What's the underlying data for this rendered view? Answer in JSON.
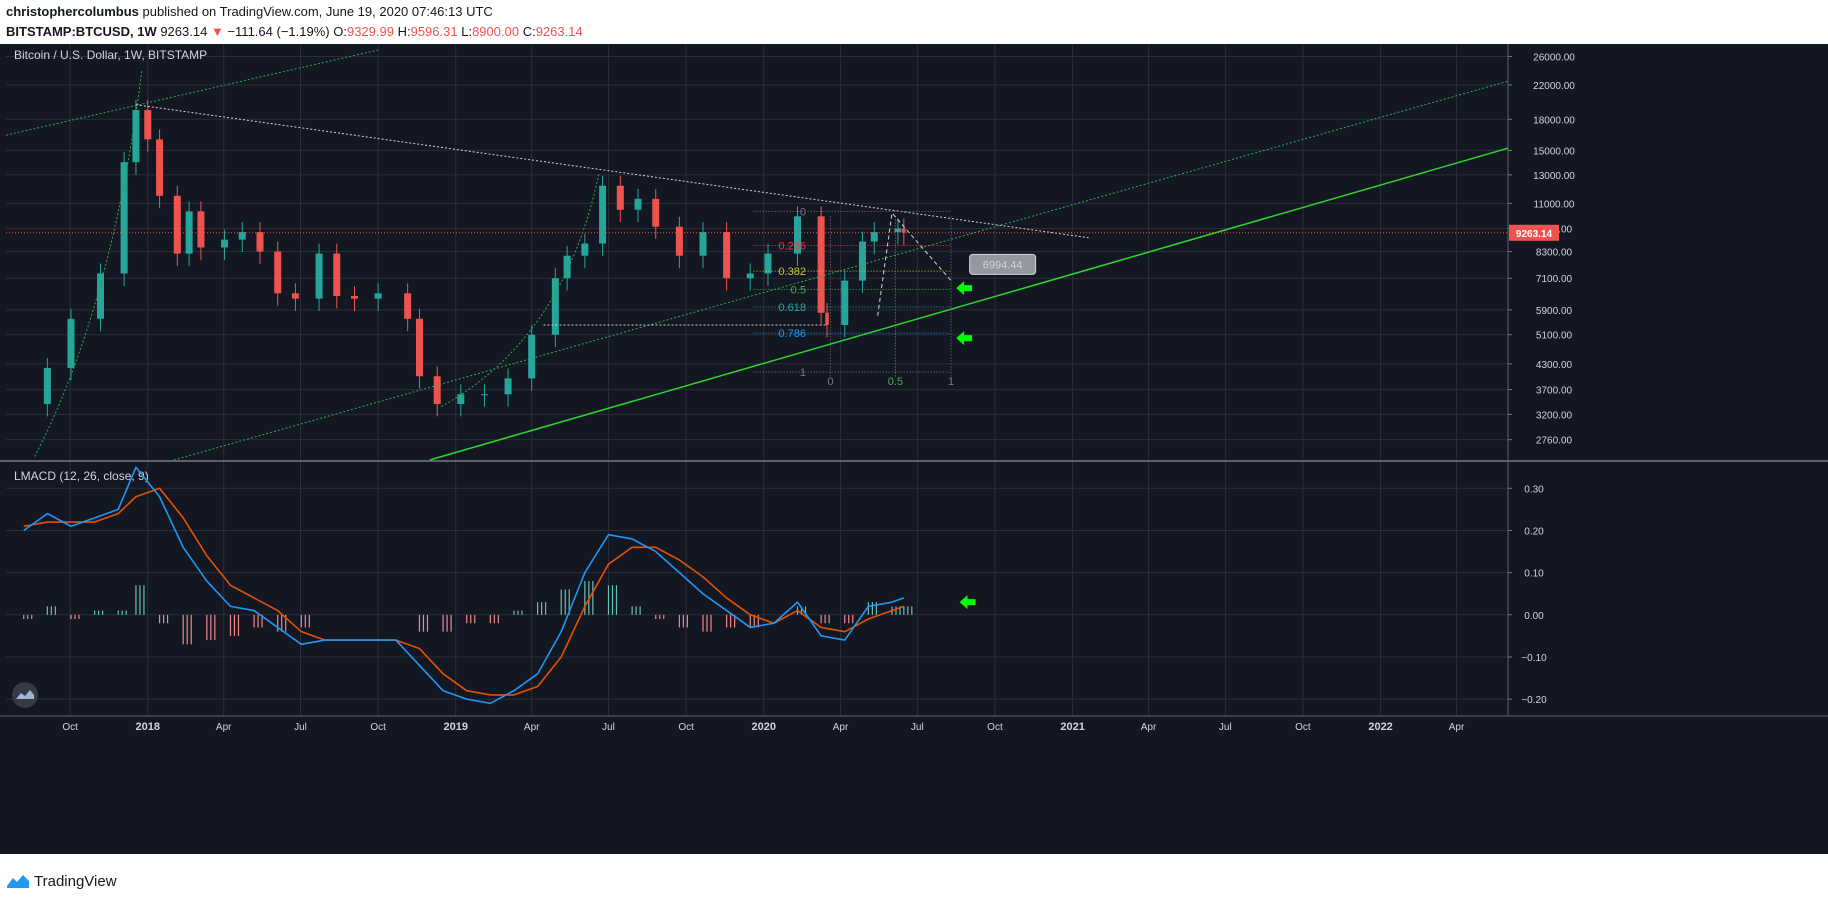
{
  "header": {
    "author": "christophercolumbus",
    "published_text": "published on TradingView.com, June 19, 2020 07:46:13 UTC",
    "symbol": "BITSTAMP:BTCUSD, 1W",
    "last": "9263.14",
    "change": "−111.64 (−1.19%)",
    "o_label": "O:",
    "o_value": "9329.99",
    "h_label": "H:",
    "h_value": "9596.31",
    "l_label": "L:",
    "l_value": "8900.00",
    "c_label": "C:",
    "c_value": "9263.14"
  },
  "footer": {
    "brand": "TradingView",
    "logo_icon": "tradingview-logo-icon"
  },
  "colors": {
    "background": "#131722",
    "grid": "#2a2e39",
    "up": "#26a69a",
    "down": "#ef5350",
    "price_line": "#ef5350",
    "macd_line": "#2196f3",
    "signal_line": "#e65100",
    "trend_green": "#2fd42f",
    "dotted_green": "#32a852",
    "white_dots": "#cfd3dc"
  },
  "chart_data": [
    {
      "type": "candlestick",
      "title": "Bitcoin / U.S. Dollar, 1W, BITSTAMP",
      "y_scale": "log",
      "ylim": [
        2450,
        27000
      ],
      "y_ticks": [
        "26000.00",
        "22000.00",
        "18000.00",
        "15000.00",
        "13000.00",
        "11000.00",
        "9500.00",
        "8300.00",
        "7100.00",
        "5900.00",
        "5100.00",
        "4300.00",
        "3700.00",
        "3200.00",
        "2760.00"
      ],
      "x_ticks": [
        "Oct",
        "2018",
        "Apr",
        "Jul",
        "Oct",
        "2019",
        "Apr",
        "Jul",
        "Oct",
        "2020",
        "Apr",
        "Jul",
        "Oct",
        "2021",
        "Apr",
        "Jul",
        "Oct",
        "2022",
        "Apr"
      ],
      "last_price_label": "9263.14",
      "series": [
        {
          "name": "close",
          "x": [
            "2017-08-07",
            "2017-09-04",
            "2017-10-02",
            "2017-11-06",
            "2017-12-04",
            "2017-12-18",
            "2018-01-01",
            "2018-01-15",
            "2018-02-05",
            "2018-02-19",
            "2018-03-05",
            "2018-04-02",
            "2018-04-23",
            "2018-05-14",
            "2018-06-04",
            "2018-06-25",
            "2018-07-23",
            "2018-08-13",
            "2018-09-03",
            "2018-10-01",
            "2018-11-05",
            "2018-11-19",
            "2018-12-10",
            "2019-01-07",
            "2019-02-04",
            "2019-03-04",
            "2019-04-01",
            "2019-04-29",
            "2019-05-13",
            "2019-06-03",
            "2019-06-24",
            "2019-07-15",
            "2019-08-05",
            "2019-08-26",
            "2019-09-23",
            "2019-10-21",
            "2019-11-18",
            "2019-12-16",
            "2020-01-06",
            "2020-02-10",
            "2020-03-09",
            "2020-03-16",
            "2020-04-06",
            "2020-04-27",
            "2020-05-11",
            "2020-06-08",
            "2020-06-15"
          ],
          "values": [
            3400,
            4200,
            5600,
            7300,
            14000,
            19000,
            16000,
            11500,
            8200,
            10500,
            8500,
            8900,
            9300,
            8300,
            6500,
            6300,
            8200,
            6400,
            6300,
            6500,
            5600,
            4000,
            3400,
            3600,
            3600,
            3950,
            5100,
            7100,
            8100,
            8700,
            12200,
            10600,
            11300,
            9600,
            8100,
            9300,
            7100,
            7300,
            8200,
            10200,
            5800,
            5400,
            7000,
            8800,
            9300,
            9500,
            9263.14
          ]
        }
      ],
      "annotations": {
        "fib_retracement": [
          {
            "level": "0",
            "price": 10500
          },
          {
            "level": "0.236",
            "price": 8600
          },
          {
            "level": "0.382",
            "price": 7400
          },
          {
            "level": "0.5",
            "price": 6650
          },
          {
            "level": "0.618",
            "price": 6000
          },
          {
            "level": "0.786",
            "price": 5150
          },
          {
            "level": "1",
            "price": 4100
          }
        ],
        "fib_time": [
          "0",
          "0.5",
          "1"
        ],
        "target_label": "6994.44"
      }
    },
    {
      "type": "line",
      "title": "LMACD (12, 26, close, 9)",
      "ylim": [
        -0.24,
        0.36
      ],
      "y_ticks": [
        "0.30",
        "0.20",
        "0.10",
        "0.00",
        "−0.10",
        "−0.20"
      ],
      "x": [
        "2017-08-07",
        "2017-09-04",
        "2017-10-02",
        "2017-10-30",
        "2017-11-27",
        "2017-12-18",
        "2018-01-15",
        "2018-02-12",
        "2018-03-12",
        "2018-04-09",
        "2018-05-07",
        "2018-06-04",
        "2018-07-02",
        "2018-07-30",
        "2018-08-27",
        "2018-09-24",
        "2018-10-22",
        "2018-11-19",
        "2018-12-17",
        "2019-01-14",
        "2019-02-11",
        "2019-03-11",
        "2019-04-08",
        "2019-05-06",
        "2019-06-03",
        "2019-07-01",
        "2019-07-29",
        "2019-08-26",
        "2019-09-23",
        "2019-10-21",
        "2019-11-18",
        "2019-12-16",
        "2020-01-13",
        "2020-02-10",
        "2020-03-09",
        "2020-04-06",
        "2020-05-04",
        "2020-06-01",
        "2020-06-15"
      ],
      "series": [
        {
          "name": "LMACD",
          "values": [
            0.2,
            0.24,
            0.21,
            0.23,
            0.25,
            0.35,
            0.28,
            0.16,
            0.08,
            0.02,
            0.01,
            -0.03,
            -0.07,
            -0.06,
            -0.06,
            -0.06,
            -0.06,
            -0.12,
            -0.18,
            -0.2,
            -0.21,
            -0.18,
            -0.14,
            -0.04,
            0.1,
            0.19,
            0.18,
            0.15,
            0.1,
            0.05,
            0.01,
            -0.03,
            -0.02,
            0.03,
            -0.05,
            -0.06,
            0.02,
            0.03,
            0.04
          ]
        },
        {
          "name": "Signal",
          "values": [
            0.21,
            0.22,
            0.22,
            0.22,
            0.24,
            0.28,
            0.3,
            0.23,
            0.14,
            0.07,
            0.04,
            0.01,
            -0.04,
            -0.06,
            -0.06,
            -0.06,
            -0.06,
            -0.08,
            -0.14,
            -0.18,
            -0.19,
            -0.19,
            -0.17,
            -0.1,
            0.02,
            0.12,
            0.16,
            0.16,
            0.13,
            0.09,
            0.04,
            0.0,
            -0.02,
            0.01,
            -0.03,
            -0.04,
            -0.01,
            0.01,
            0.02
          ]
        },
        {
          "name": "Histogram",
          "values": [
            -0.01,
            0.02,
            -0.01,
            0.01,
            0.01,
            0.07,
            -0.02,
            -0.07,
            -0.06,
            -0.05,
            -0.03,
            -0.04,
            -0.03,
            0.0,
            0.0,
            0.0,
            0.0,
            -0.04,
            -0.04,
            -0.02,
            -0.02,
            0.01,
            0.03,
            0.06,
            0.08,
            0.07,
            0.02,
            -0.01,
            -0.03,
            -0.04,
            -0.03,
            -0.03,
            0.0,
            0.02,
            -0.02,
            -0.02,
            0.03,
            0.02,
            0.02
          ]
        }
      ]
    }
  ]
}
